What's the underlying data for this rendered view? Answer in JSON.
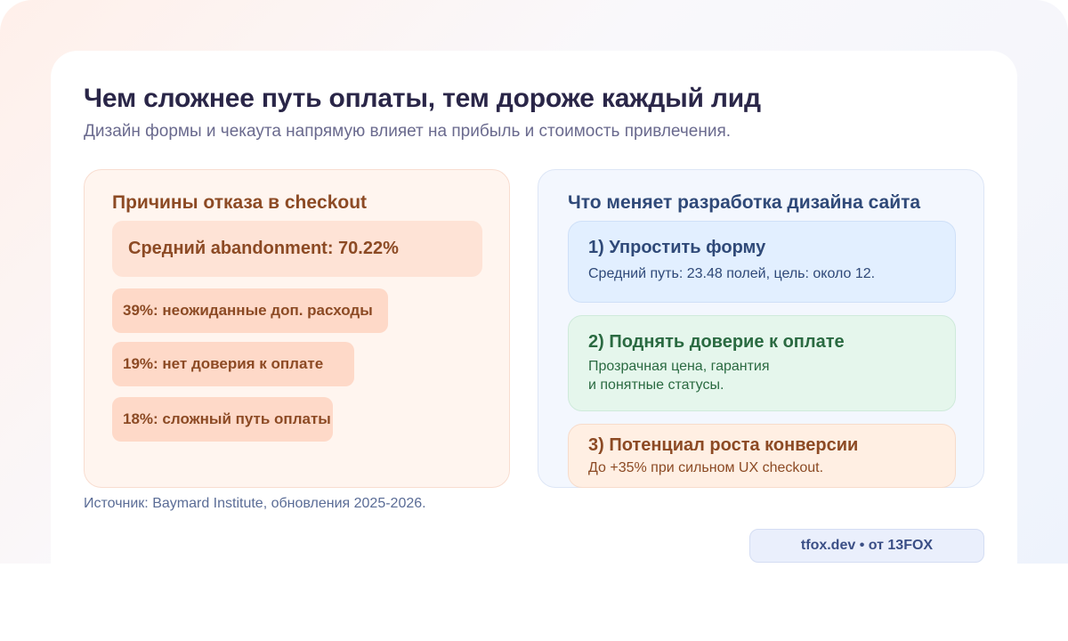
{
  "header": {
    "title": "Чем сложнее путь оплаты, тем дороже каждый лид",
    "subtitle": "Дизайн формы и чекаута напрямую влияет на прибыль и стоимость привлечения."
  },
  "left_panel": {
    "heading": "Причины отказа в checkout",
    "average": "Средний abandonment: 70.22%",
    "reasons": [
      {
        "label": "39%: неожиданные доп. расходы",
        "percent": 39
      },
      {
        "label": "19%: нет доверия к оплате",
        "percent": 19
      },
      {
        "label": "18%: сложный путь оплаты",
        "percent": 18
      }
    ]
  },
  "right_panel": {
    "heading": "Что меняет разработка дизайна сайта",
    "steps": [
      {
        "title": "1) Упростить форму",
        "desc_lines": [
          "Средний путь: 23.48 полей, цель: около 12."
        ]
      },
      {
        "title": "2) Поднять доверие к оплате",
        "desc_lines": [
          "Прозрачная цена, гарантия",
          "и понятные статусы."
        ]
      },
      {
        "title": "3) Потенциал роста конверсии",
        "desc_lines": [
          "До +35% при сильном UX checkout."
        ]
      }
    ]
  },
  "footer": {
    "source": "Источник: Baymard Institute, обновления 2025-2026.",
    "badge": "tfox.dev • от 13FOX"
  },
  "colors": {
    "title": "#2a2648",
    "accent_orange": "#8c4a24",
    "accent_blue": "#2f4978",
    "accent_green": "#2a6a41"
  }
}
